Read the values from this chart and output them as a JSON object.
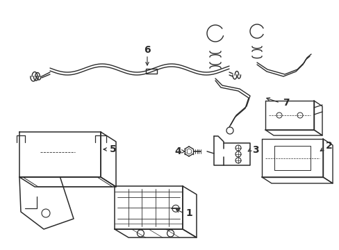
{
  "bg_color": "#ffffff",
  "line_color": "#2a2a2a",
  "lw": 1.0,
  "figsize": [
    4.89,
    3.6
  ],
  "dpi": 100
}
